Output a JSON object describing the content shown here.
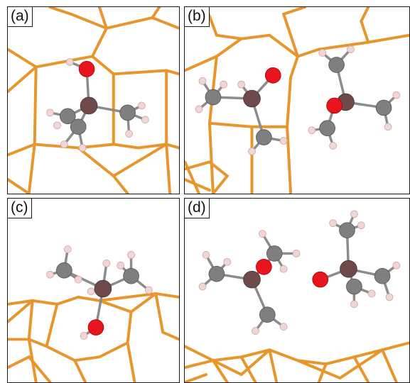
{
  "panels": [
    {
      "id": "a",
      "label": "(a)"
    },
    {
      "id": "b",
      "label": "(b)"
    },
    {
      "id": "c",
      "label": "(c)"
    },
    {
      "id": "d",
      "label": "(d)"
    }
  ],
  "colors": {
    "framework_bond": "#e8962c",
    "framework_bond_dark": "#b8701a",
    "oxygen": "#e8141e",
    "carbon": "#7f7f7f",
    "metal_center": "#6e4a4a",
    "hydrogen": "#f2d6d6",
    "molecule_bond": "#8c8c8c",
    "frame_border": "#1a1a1a"
  },
  "atom_types": [
    "oxygen",
    "carbon",
    "metal_center",
    "hydrogen"
  ]
}
